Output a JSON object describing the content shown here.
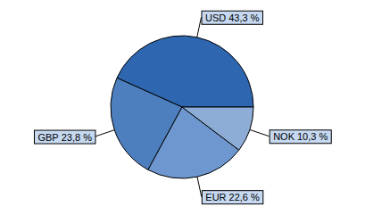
{
  "chart_data": {
    "type": "pie",
    "categories": [
      "USD",
      "GBP",
      "EUR",
      "NOK"
    ],
    "values": [
      43.3,
      23.8,
      22.6,
      10.3
    ],
    "value_labels": [
      "43,3 %",
      "23,8 %",
      "22,6 %",
      "10,3 %"
    ],
    "colors": [
      "#2e66b0",
      "#4d7fbf",
      "#6e97cf",
      "#8eadd6"
    ],
    "data_labels": true
  }
}
